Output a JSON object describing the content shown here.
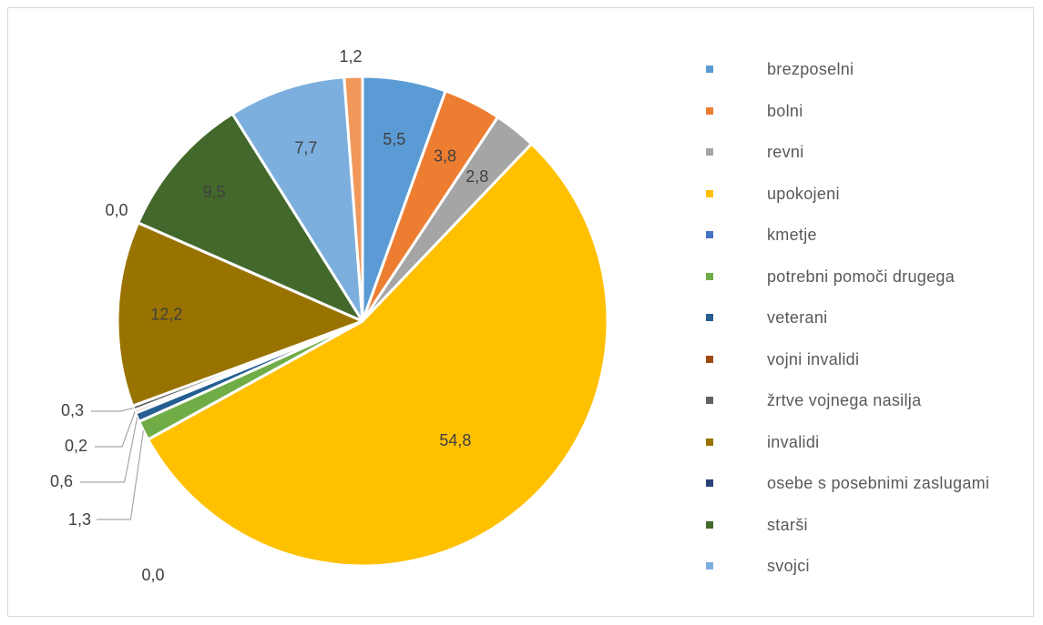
{
  "chart_data": {
    "type": "pie",
    "title": "",
    "legend_position": "right",
    "series": [
      {
        "name": "brezposelni",
        "value": 5.5,
        "label": "5,5",
        "color": "#5b9bd5"
      },
      {
        "name": "bolni",
        "value": 3.8,
        "label": "3,8",
        "color": "#ed7d31"
      },
      {
        "name": "revni",
        "value": 2.8,
        "label": "2,8",
        "color": "#a5a5a5"
      },
      {
        "name": "upokojeni",
        "value": 54.8,
        "label": "54,8",
        "color": "#ffc000"
      },
      {
        "name": "kmetje",
        "value": 0.0,
        "label": "0,0",
        "color": "#4472c4"
      },
      {
        "name": "potrebni pomoči drugega",
        "value": 1.3,
        "label": "1,3",
        "color": "#70ad47"
      },
      {
        "name": "veterani",
        "value": 0.6,
        "label": "0,6",
        "color": "#255e91"
      },
      {
        "name": "vojni invalidi",
        "value": 0.2,
        "label": "0,2",
        "color": "#9e480e"
      },
      {
        "name": "žrtve vojnega nasilja",
        "value": 0.3,
        "label": "0,3",
        "color": "#636363"
      },
      {
        "name": "invalidi",
        "value": 12.2,
        "label": "12,2",
        "color": "#997300"
      },
      {
        "name": "osebe s posebnimi zaslugami",
        "value": 0.0,
        "label": "0,0",
        "color": "#264478"
      },
      {
        "name": "starši",
        "value": 9.5,
        "label": "9,5",
        "color": "#43682b"
      },
      {
        "name": "svojci",
        "value": 7.7,
        "label": "7,7",
        "color": "#7cafdd"
      },
      {
        "name": "",
        "value": 1.2,
        "label": "1,2",
        "color": "#f1975a"
      }
    ]
  }
}
